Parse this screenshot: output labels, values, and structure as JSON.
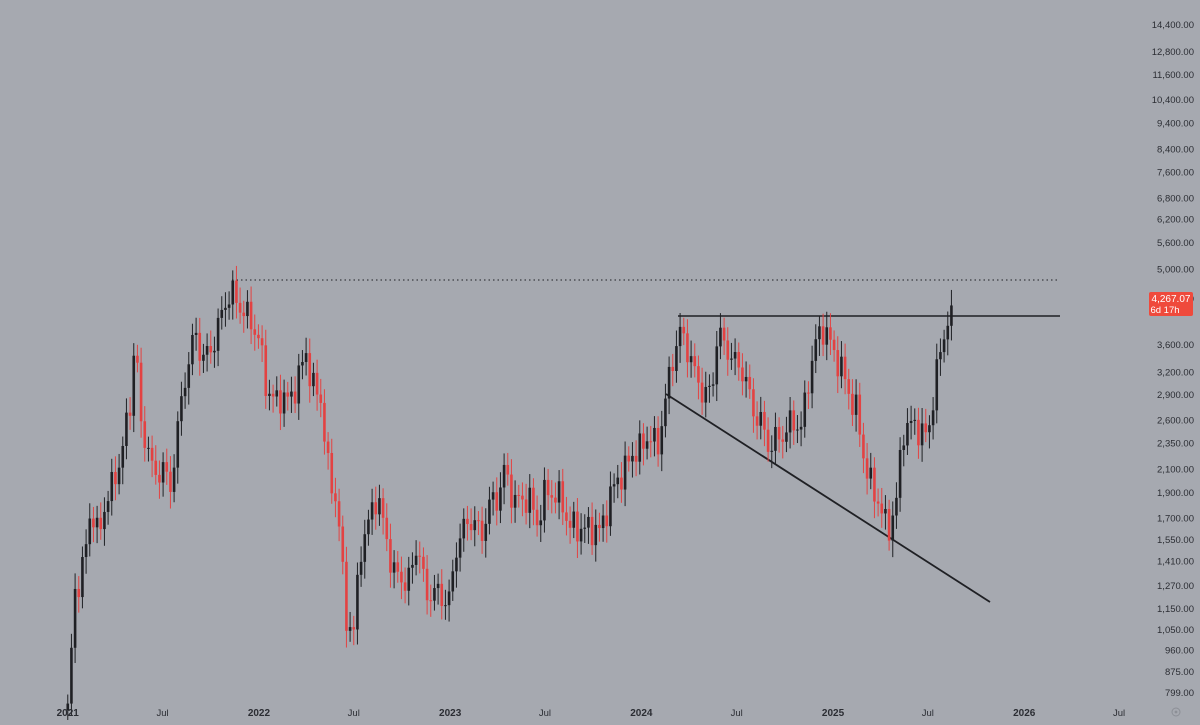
{
  "chart_data": {
    "type": "candlestick",
    "scale": "log",
    "grid": false,
    "colors": {
      "background": "#a6a9b0",
      "up": "#1f2024",
      "down": "#e34242",
      "axis_text": "#2b2d33",
      "price_tag": "#ef4a3c",
      "price_tag_text": "#ffffff"
    },
    "x_ticks": [
      "2021",
      "Jul",
      "2022",
      "Jul",
      "2023",
      "Jul",
      "2024",
      "Jul",
      "2025",
      "Jul",
      "2026",
      "Jul"
    ],
    "x_tick_dates": [
      "2021-01",
      "2021-07",
      "2022-01",
      "2022-07",
      "2023-01",
      "2023-07",
      "2024-01",
      "2024-07",
      "2025-01",
      "2025-07",
      "2026-01",
      "2026-07"
    ],
    "y_ticks": [
      "14,400.00",
      "12,800.00",
      "11,600.00",
      "10,400.00",
      "9,400.00",
      "8,400.00",
      "7,600.00",
      "6,800.00",
      "6,200.00",
      "5,600.00",
      "5,000.00",
      "4,400.00",
      "3,600.00",
      "3,200.00",
      "2,900.00",
      "2,600.00",
      "2,350.00",
      "2,100.00",
      "1,900.00",
      "1,700.00",
      "1,550.00",
      "1,410.00",
      "1,270.00",
      "1,150.00",
      "1,050.00",
      "960.00",
      "875.00",
      "799.00"
    ],
    "y_tick_values": [
      14400,
      12800,
      11600,
      10400,
      9400,
      8400,
      7600,
      6800,
      6200,
      5600,
      5000,
      4400,
      3600,
      3200,
      2900,
      2600,
      2350,
      2100,
      1900,
      1700,
      1550,
      1410,
      1270,
      1150,
      1050,
      960,
      875,
      799
    ],
    "ylim": [
      760,
      15600
    ],
    "xlim": [
      "2020-12-21",
      "2026-08-10"
    ],
    "current_price_label": "4,267.07",
    "countdown_label": "6d 17h",
    "current_price": 4267.07,
    "close_series": [
      [
        "2021-01-01",
        740
      ],
      [
        "2021-01-15",
        1230
      ],
      [
        "2021-02-01",
        1400
      ],
      [
        "2021-02-15",
        1800
      ],
      [
        "2021-03-01",
        1550
      ],
      [
        "2021-03-15",
        1850
      ],
      [
        "2021-04-01",
        2000
      ],
      [
        "2021-04-15",
        2300
      ],
      [
        "2021-05-01",
        2800
      ],
      [
        "2021-05-10",
        3900
      ],
      [
        "2021-05-20",
        2500
      ],
      [
        "2021-06-01",
        2400
      ],
      [
        "2021-06-15",
        2000
      ],
      [
        "2021-07-01",
        2150
      ],
      [
        "2021-07-15",
        1900
      ],
      [
        "2021-08-01",
        2600
      ],
      [
        "2021-08-15",
        3200
      ],
      [
        "2021-09-01",
        3800
      ],
      [
        "2021-09-15",
        3400
      ],
      [
        "2021-10-01",
        3500
      ],
      [
        "2021-10-15",
        3900
      ],
      [
        "2021-11-01",
        4400
      ],
      [
        "2021-11-10",
        4550
      ],
      [
        "2021-11-20",
        4300
      ],
      [
        "2021-12-01",
        4200
      ],
      [
        "2021-12-15",
        4000
      ],
      [
        "2022-01-01",
        3700
      ],
      [
        "2022-01-15",
        3000
      ],
      [
        "2022-02-01",
        2800
      ],
      [
        "2022-02-15",
        2900
      ],
      [
        "2022-03-01",
        2800
      ],
      [
        "2022-03-15",
        3100
      ],
      [
        "2022-04-01",
        3450
      ],
      [
        "2022-04-15",
        3000
      ],
      [
        "2022-05-01",
        2800
      ],
      [
        "2022-05-15",
        2000
      ],
      [
        "2022-06-01",
        1800
      ],
      [
        "2022-06-15",
        1100
      ],
      [
        "2022-07-01",
        1050
      ],
      [
        "2022-07-15",
        1500
      ],
      [
        "2022-08-01",
        1700
      ],
      [
        "2022-08-15",
        1900
      ],
      [
        "2022-09-01",
        1550
      ],
      [
        "2022-09-15",
        1350
      ],
      [
        "2022-10-01",
        1300
      ],
      [
        "2022-10-15",
        1300
      ],
      [
        "2022-11-01",
        1550
      ],
      [
        "2022-11-15",
        1200
      ],
      [
        "2022-12-01",
        1250
      ],
      [
        "2022-12-15",
        1200
      ],
      [
        "2023-01-01",
        1200
      ],
      [
        "2023-01-15",
        1550
      ],
      [
        "2023-02-01",
        1650
      ],
      [
        "2023-02-15",
        1700
      ],
      [
        "2023-03-01",
        1550
      ],
      [
        "2023-03-15",
        1800
      ],
      [
        "2023-04-01",
        1850
      ],
      [
        "2023-04-15",
        2100
      ],
      [
        "2023-05-01",
        1850
      ],
      [
        "2023-05-15",
        1820
      ],
      [
        "2023-06-01",
        1870
      ],
      [
        "2023-06-15",
        1650
      ],
      [
        "2023-07-01",
        1900
      ],
      [
        "2023-07-15",
        1890
      ],
      [
        "2023-08-01",
        1850
      ],
      [
        "2023-08-15",
        1650
      ],
      [
        "2023-09-01",
        1630
      ],
      [
        "2023-09-15",
        1620
      ],
      [
        "2023-10-01",
        1630
      ],
      [
        "2023-10-15",
        1600
      ],
      [
        "2023-11-01",
        1850
      ],
      [
        "2023-11-15",
        2000
      ],
      [
        "2023-12-01",
        2100
      ],
      [
        "2023-12-15",
        2250
      ],
      [
        "2024-01-01",
        2300
      ],
      [
        "2024-01-15",
        2450
      ],
      [
        "2024-02-01",
        2300
      ],
      [
        "2024-02-15",
        2800
      ],
      [
        "2024-03-01",
        3400
      ],
      [
        "2024-03-15",
        3800
      ],
      [
        "2024-04-01",
        3500
      ],
      [
        "2024-04-15",
        3100
      ],
      [
        "2024-05-01",
        2900
      ],
      [
        "2024-05-15",
        2950
      ],
      [
        "2024-05-25",
        3800
      ],
      [
        "2024-06-01",
        3700
      ],
      [
        "2024-06-15",
        3500
      ],
      [
        "2024-07-01",
        3300
      ],
      [
        "2024-07-15",
        3200
      ],
      [
        "2024-08-01",
        2700
      ],
      [
        "2024-08-15",
        2600
      ],
      [
        "2024-09-01",
        2300
      ],
      [
        "2024-09-15",
        2400
      ],
      [
        "2024-10-01",
        2450
      ],
      [
        "2024-10-15",
        2600
      ],
      [
        "2024-11-01",
        2500
      ],
      [
        "2024-11-15",
        3100
      ],
      [
        "2024-12-01",
        3700
      ],
      [
        "2024-12-15",
        3900
      ],
      [
        "2025-01-01",
        3500
      ],
      [
        "2025-01-15",
        3300
      ],
      [
        "2025-02-01",
        2900
      ],
      [
        "2025-02-15",
        2700
      ],
      [
        "2025-03-01",
        2200
      ],
      [
        "2025-03-15",
        1950
      ],
      [
        "2025-04-01",
        1800
      ],
      [
        "2025-04-15",
        1600
      ],
      [
        "2025-05-01",
        1800
      ],
      [
        "2025-05-15",
        2500
      ],
      [
        "2025-06-01",
        2550
      ],
      [
        "2025-06-15",
        2500
      ],
      [
        "2025-07-01",
        2400
      ],
      [
        "2025-07-15",
        3100
      ],
      [
        "2025-08-01",
        3750
      ],
      [
        "2025-08-15",
        4400
      ],
      [
        "2025-08-20",
        4267.07
      ]
    ]
  }
}
